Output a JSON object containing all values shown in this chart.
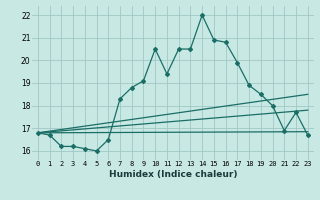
{
  "xlabel": "Humidex (Indice chaleur)",
  "ylabel": "",
  "bg_color": "#c8e8e4",
  "line_color": "#1a6e65",
  "grid_color": "#a0c8c4",
  "xlim": [
    -0.5,
    23.5
  ],
  "ylim": [
    15.6,
    22.4
  ],
  "xticks": [
    0,
    1,
    2,
    3,
    4,
    5,
    6,
    7,
    8,
    9,
    10,
    11,
    12,
    13,
    14,
    15,
    16,
    17,
    18,
    19,
    20,
    21,
    22,
    23
  ],
  "yticks": [
    16,
    17,
    18,
    19,
    20,
    21,
    22
  ],
  "main_x": [
    0,
    1,
    2,
    3,
    4,
    5,
    6,
    7,
    8,
    9,
    10,
    11,
    12,
    13,
    14,
    15,
    16,
    17,
    18,
    19,
    20,
    21,
    22,
    23
  ],
  "main_y": [
    16.8,
    16.7,
    16.2,
    16.2,
    16.1,
    16.0,
    16.5,
    18.3,
    18.8,
    19.1,
    20.5,
    19.4,
    20.5,
    20.5,
    22.0,
    20.9,
    20.8,
    19.9,
    18.9,
    18.5,
    18.0,
    16.9,
    17.7,
    16.7
  ],
  "line2_x": [
    0,
    23
  ],
  "line2_y": [
    16.8,
    18.5
  ],
  "line3_x": [
    0,
    23
  ],
  "line3_y": [
    16.8,
    17.8
  ],
  "line4_x": [
    0,
    23
  ],
  "line4_y": [
    16.8,
    16.85
  ]
}
